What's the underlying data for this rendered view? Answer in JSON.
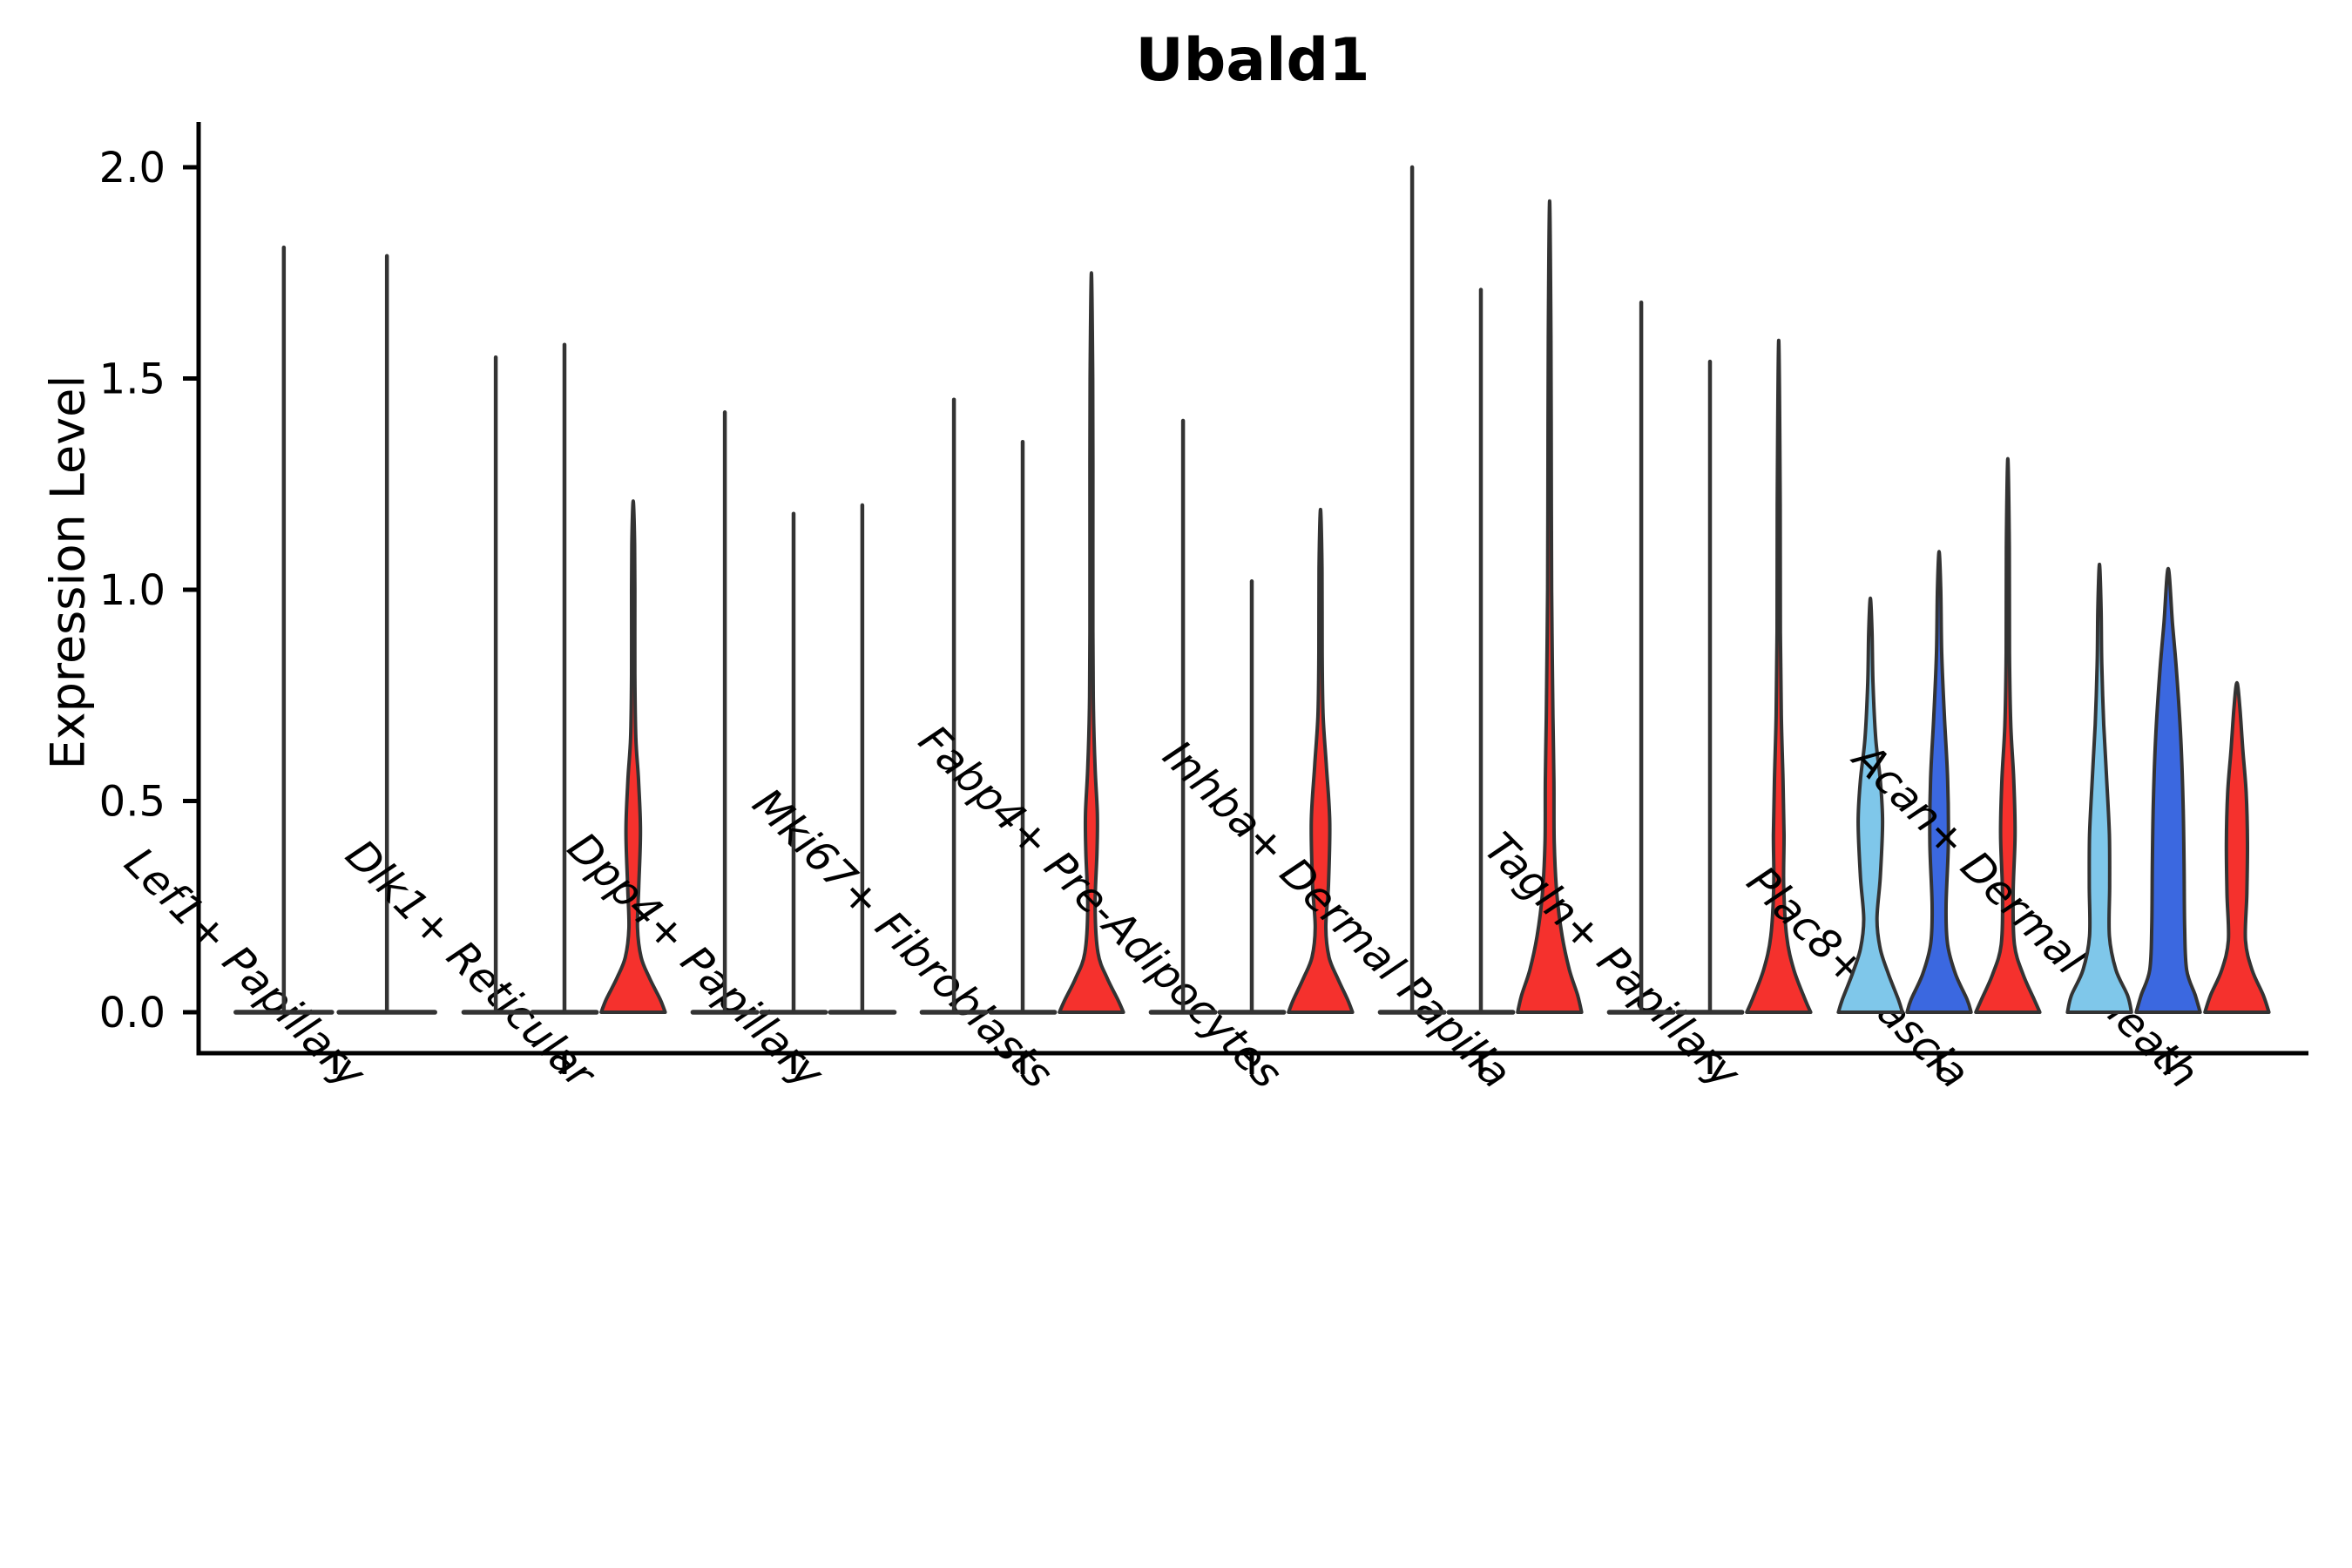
{
  "chart_data": {
    "type": "violin",
    "title": "Ubald1",
    "ylabel": "Expression Level",
    "xlabel": "",
    "yticks": [
      0.0,
      0.5,
      1.0,
      1.5,
      2.0
    ],
    "ytick_labels": [
      "0.0",
      "0.5",
      "1.0",
      "1.5",
      "2.0"
    ],
    "ylim": [
      -0.1,
      2.11
    ],
    "grid": false,
    "legend_position": "none",
    "palette": {
      "lightblue": "#7FC7EA",
      "darkblue": "#3B68E0",
      "red": "#F5312D",
      "outline": "#333333",
      "axis": "#000000"
    },
    "categories": [
      {
        "label": "Lef1+ Papillary",
        "violins": [
          {
            "color": "lightblue",
            "kind": "spike",
            "max": 1.81
          },
          {
            "color": "darkblue",
            "kind": "spike",
            "max": 1.79
          }
        ]
      },
      {
        "label": "Dlk1+ Reticular",
        "violins": [
          {
            "color": "lightblue",
            "kind": "spike",
            "max": 1.55
          },
          {
            "color": "darkblue",
            "kind": "spike",
            "max": 1.58
          },
          {
            "color": "red",
            "kind": "violin",
            "max": 1.21,
            "profile": [
              [
                0,
                0.97
              ],
              [
                0.03,
                0.82
              ],
              [
                0.08,
                0.5
              ],
              [
                0.13,
                0.24
              ],
              [
                0.2,
                0.13
              ],
              [
                0.3,
                0.17
              ],
              [
                0.43,
                0.22
              ],
              [
                0.55,
                0.16
              ],
              [
                0.65,
                0.08
              ],
              [
                0.8,
                0.05
              ],
              [
                1.0,
                0.05
              ],
              [
                1.12,
                0.04
              ],
              [
                1.21,
                0
              ]
            ]
          }
        ]
      },
      {
        "label": "Dpp4+ Papillary",
        "violins": [
          {
            "color": "lightblue",
            "kind": "spike",
            "max": 1.42
          },
          {
            "color": "darkblue",
            "kind": "spike",
            "max": 1.18
          },
          {
            "color": "red",
            "kind": "spike",
            "max": 1.2
          }
        ]
      },
      {
        "label": "Mki67+ Fibroblasts",
        "violins": [
          {
            "color": "lightblue",
            "kind": "spike",
            "max": 1.45
          },
          {
            "color": "darkblue",
            "kind": "spike",
            "max": 1.35
          },
          {
            "color": "red",
            "kind": "violin",
            "max": 1.75,
            "profile": [
              [
                0,
                0.97
              ],
              [
                0.03,
                0.8
              ],
              [
                0.08,
                0.48
              ],
              [
                0.14,
                0.2
              ],
              [
                0.25,
                0.11
              ],
              [
                0.38,
                0.17
              ],
              [
                0.47,
                0.18
              ],
              [
                0.58,
                0.11
              ],
              [
                0.72,
                0.06
              ],
              [
                0.9,
                0.045
              ],
              [
                1.2,
                0.045
              ],
              [
                1.5,
                0.04
              ],
              [
                1.75,
                0
              ]
            ]
          }
        ]
      },
      {
        "label": "Fabp4+ Pre-Adipocytes",
        "violins": [
          {
            "color": "lightblue",
            "kind": "spike",
            "max": 1.4
          },
          {
            "color": "darkblue",
            "kind": "spike",
            "max": 1.02
          },
          {
            "color": "red",
            "kind": "violin",
            "max": 1.19,
            "profile": [
              [
                0,
                0.97
              ],
              [
                0.03,
                0.82
              ],
              [
                0.08,
                0.52
              ],
              [
                0.13,
                0.26
              ],
              [
                0.2,
                0.16
              ],
              [
                0.3,
                0.24
              ],
              [
                0.45,
                0.28
              ],
              [
                0.58,
                0.18
              ],
              [
                0.7,
                0.08
              ],
              [
                0.85,
                0.05
              ],
              [
                1.05,
                0.045
              ],
              [
                1.19,
                0
              ]
            ]
          }
        ]
      },
      {
        "label": "Inhba+ Dermal Papilla",
        "violins": [
          {
            "color": "lightblue",
            "kind": "spike",
            "max": 2.0
          },
          {
            "color": "darkblue",
            "kind": "spike",
            "max": 1.71
          },
          {
            "color": "red",
            "kind": "violin",
            "max": 1.92,
            "profile": [
              [
                0,
                0.97
              ],
              [
                0.04,
                0.85
              ],
              [
                0.1,
                0.6
              ],
              [
                0.18,
                0.38
              ],
              [
                0.28,
                0.22
              ],
              [
                0.4,
                0.14
              ],
              [
                0.55,
                0.13
              ],
              [
                0.7,
                0.1
              ],
              [
                0.85,
                0.08
              ],
              [
                1.0,
                0.06
              ],
              [
                1.3,
                0.05
              ],
              [
                1.6,
                0.04
              ],
              [
                1.92,
                0
              ]
            ]
          }
        ]
      },
      {
        "label": "Tagln+ Papillary",
        "violins": [
          {
            "color": "lightblue",
            "kind": "spike",
            "max": 1.68
          },
          {
            "color": "darkblue",
            "kind": "spike",
            "max": 1.54
          },
          {
            "color": "red",
            "kind": "violin",
            "max": 1.59,
            "profile": [
              [
                0,
                0.97
              ],
              [
                0.03,
                0.8
              ],
              [
                0.1,
                0.46
              ],
              [
                0.18,
                0.24
              ],
              [
                0.3,
                0.15
              ],
              [
                0.42,
                0.16
              ],
              [
                0.55,
                0.13
              ],
              [
                0.7,
                0.08
              ],
              [
                0.9,
                0.05
              ],
              [
                1.2,
                0.045
              ],
              [
                1.59,
                0
              ]
            ]
          }
        ]
      },
      {
        "label": "Plac8+ Fascia",
        "violins": [
          {
            "color": "lightblue",
            "kind": "violin",
            "max": 0.98,
            "profile": [
              [
                0,
                0.97
              ],
              [
                0.03,
                0.85
              ],
              [
                0.09,
                0.55
              ],
              [
                0.15,
                0.3
              ],
              [
                0.22,
                0.2
              ],
              [
                0.32,
                0.3
              ],
              [
                0.45,
                0.37
              ],
              [
                0.55,
                0.3
              ],
              [
                0.65,
                0.16
              ],
              [
                0.78,
                0.08
              ],
              [
                0.9,
                0.05
              ],
              [
                0.98,
                0
              ]
            ]
          },
          {
            "color": "darkblue",
            "kind": "violin",
            "max": 1.09,
            "profile": [
              [
                0,
                0.97
              ],
              [
                0.03,
                0.85
              ],
              [
                0.09,
                0.5
              ],
              [
                0.16,
                0.26
              ],
              [
                0.25,
                0.21
              ],
              [
                0.4,
                0.28
              ],
              [
                0.55,
                0.26
              ],
              [
                0.7,
                0.16
              ],
              [
                0.85,
                0.08
              ],
              [
                1.0,
                0.05
              ],
              [
                1.09,
                0
              ]
            ]
          },
          {
            "color": "red",
            "kind": "violin",
            "max": 1.31,
            "profile": [
              [
                0,
                0.97
              ],
              [
                0.03,
                0.8
              ],
              [
                0.09,
                0.46
              ],
              [
                0.16,
                0.2
              ],
              [
                0.28,
                0.16
              ],
              [
                0.42,
                0.22
              ],
              [
                0.55,
                0.18
              ],
              [
                0.68,
                0.09
              ],
              [
                0.85,
                0.05
              ],
              [
                1.1,
                0.045
              ],
              [
                1.31,
                0
              ]
            ]
          }
        ]
      },
      {
        "label": "Acan+ Dermal Sheath",
        "violins": [
          {
            "color": "lightblue",
            "kind": "violin",
            "max": 1.06,
            "profile": [
              [
                0,
                0.97
              ],
              [
                0.04,
                0.85
              ],
              [
                0.1,
                0.5
              ],
              [
                0.18,
                0.3
              ],
              [
                0.3,
                0.31
              ],
              [
                0.42,
                0.3
              ],
              [
                0.55,
                0.22
              ],
              [
                0.68,
                0.13
              ],
              [
                0.82,
                0.07
              ],
              [
                0.95,
                0.05
              ],
              [
                1.06,
                0
              ]
            ]
          },
          {
            "color": "darkblue",
            "kind": "violin",
            "max": 1.05,
            "profile": [
              [
                0,
                0.97
              ],
              [
                0.04,
                0.82
              ],
              [
                0.1,
                0.56
              ],
              [
                0.2,
                0.5
              ],
              [
                0.35,
                0.48
              ],
              [
                0.5,
                0.45
              ],
              [
                0.65,
                0.38
              ],
              [
                0.8,
                0.26
              ],
              [
                0.92,
                0.13
              ],
              [
                1.05,
                0
              ]
            ]
          },
          {
            "color": "red",
            "kind": "violin",
            "max": 0.78,
            "profile": [
              [
                0,
                0.97
              ],
              [
                0.04,
                0.8
              ],
              [
                0.1,
                0.46
              ],
              [
                0.17,
                0.26
              ],
              [
                0.28,
                0.3
              ],
              [
                0.4,
                0.32
              ],
              [
                0.52,
                0.28
              ],
              [
                0.62,
                0.18
              ],
              [
                0.72,
                0.09
              ],
              [
                0.78,
                0
              ]
            ]
          }
        ]
      }
    ]
  }
}
